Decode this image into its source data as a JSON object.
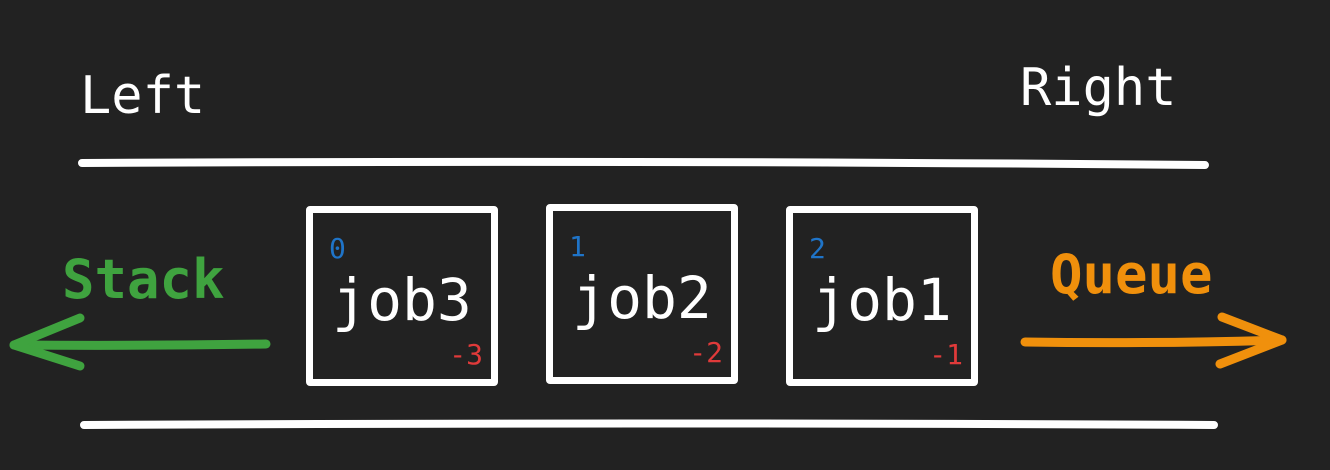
{
  "labels": {
    "left": "Left",
    "right": "Right",
    "stack": "Stack",
    "queue": "Queue"
  },
  "jobs": [
    {
      "name": "job3",
      "index": "0",
      "neg_index": "-3"
    },
    {
      "name": "job2",
      "index": "1",
      "neg_index": "-2"
    },
    {
      "name": "job1",
      "index": "2",
      "neg_index": "-1"
    }
  ],
  "colors": {
    "background": "#222222",
    "foreground": "#ffffff",
    "stack": "#3fa33f",
    "queue": "#f0900c",
    "index": "#1f74c8",
    "neg_index": "#e03a3a"
  },
  "icons": {
    "stack_arrow": "arrow-left-icon",
    "queue_arrow": "arrow-right-icon"
  }
}
